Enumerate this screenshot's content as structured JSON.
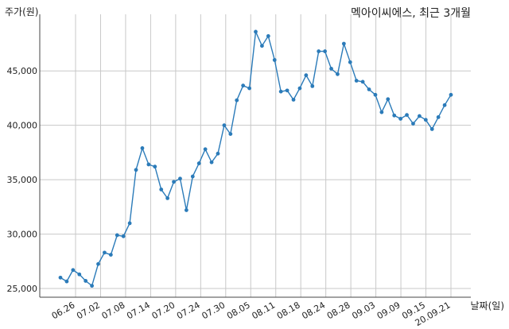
{
  "chart_data": {
    "type": "line",
    "title": "멕아이씨에스, 최근 3개월",
    "ylabel": "주가(원)",
    "xlabel": "날짜(일)",
    "x_tick_labels": [
      "06.26",
      "07.02",
      "07.08",
      "07.14",
      "07.20",
      "07.24",
      "07.30",
      "08.05",
      "08.11",
      "08.18",
      "08.24",
      "08.28",
      "09.03",
      "09.09",
      "09.15",
      "20.09.21"
    ],
    "y_ticks": [
      25000,
      30000,
      35000,
      40000,
      45000
    ],
    "y_tick_labels": [
      "25,000",
      "30,000",
      "35,000",
      "40,000",
      "45,000"
    ],
    "ylim": [
      24200,
      50200
    ],
    "grid": true,
    "color": "#2b7bb9",
    "series": [
      {
        "values": [
          26000,
          25650,
          26700,
          26300,
          25700,
          25250,
          27250,
          28300,
          28100,
          29900,
          29800,
          31000,
          35900,
          37900,
          36400,
          36200,
          34100,
          33300,
          34800,
          35100,
          32200,
          35300,
          36500,
          37800,
          36600,
          37400,
          40000,
          39200,
          42300,
          43650,
          43400,
          48600,
          47300,
          48200,
          46000,
          43100,
          43200,
          42350,
          43400,
          44600,
          43600,
          46800,
          46800,
          45200,
          44700,
          47500,
          45800,
          44100,
          44000,
          43300,
          42800,
          41200,
          42400,
          40900,
          40600,
          40950,
          40150,
          40850,
          40500,
          39650,
          40750,
          41850,
          42800
        ]
      }
    ]
  }
}
